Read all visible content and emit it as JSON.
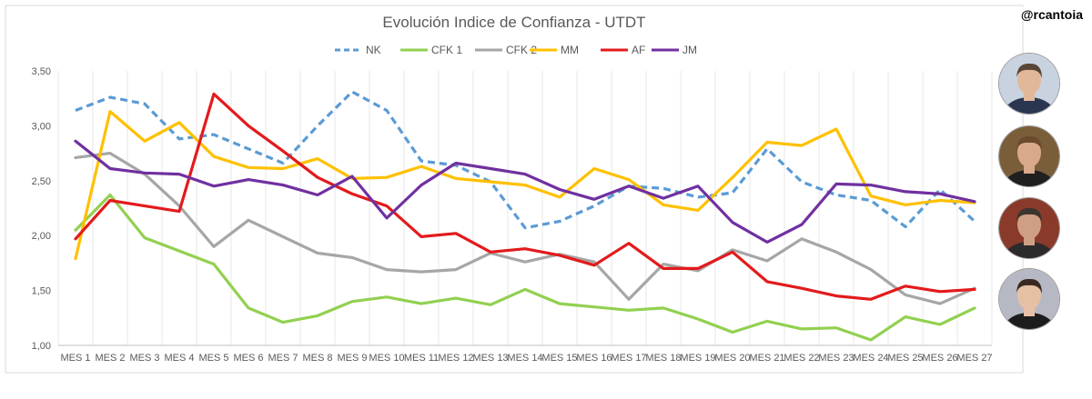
{
  "handle": "@rcantoia",
  "chart_data": {
    "type": "line",
    "title": "Evolución Indice de Confianza - UTDT",
    "xlabel": "",
    "ylabel": "",
    "ylim": [
      1.0,
      3.5
    ],
    "yticks": [
      "1,00",
      "1,50",
      "2,00",
      "2,50",
      "3,00",
      "3,50"
    ],
    "grid": "vertical",
    "legend": "top-center",
    "categories": [
      "MES 1",
      "MES 2",
      "MES 3",
      "MES 4",
      "MES 5",
      "MES 6",
      "MES 7",
      "MES 8",
      "MES 9",
      "MES 10",
      "MES 11",
      "MES 12",
      "MES 13",
      "MES 14",
      "MES 15",
      "MES 16",
      "MES 17",
      "MES 18",
      "MES 19",
      "MES 20",
      "MES 21",
      "MES 22",
      "MES 23",
      "MES 24",
      "MES 25",
      "MES 26",
      "MES 27"
    ],
    "series": [
      {
        "name": "NK",
        "color": "#5b9bd5",
        "dashed": true,
        "values": [
          3.14,
          3.26,
          3.2,
          2.88,
          2.92,
          2.79,
          2.66,
          3.0,
          3.31,
          3.14,
          2.68,
          2.64,
          2.49,
          2.07,
          2.13,
          2.27,
          2.45,
          2.43,
          2.35,
          2.39,
          2.79,
          2.49,
          2.37,
          2.32,
          2.08,
          2.42,
          2.13
        ]
      },
      {
        "name": "CFK 1",
        "color": "#92d050",
        "dashed": false,
        "values": [
          2.05,
          2.37,
          1.98,
          1.86,
          1.74,
          1.34,
          1.21,
          1.27,
          1.4,
          1.44,
          1.38,
          1.43,
          1.37,
          1.51,
          1.38,
          1.35,
          1.32,
          1.34,
          1.24,
          1.12,
          1.22,
          1.15,
          1.16,
          1.05,
          1.26,
          1.19,
          1.34
        ]
      },
      {
        "name": "CFK 2",
        "color": "#a6a6a6",
        "dashed": false,
        "values": [
          2.71,
          2.75,
          2.56,
          2.27,
          1.9,
          2.14,
          1.99,
          1.84,
          1.8,
          1.69,
          1.67,
          1.69,
          1.84,
          1.76,
          1.83,
          1.76,
          1.42,
          1.74,
          1.68,
          1.87,
          1.77,
          1.97,
          1.85,
          1.69,
          1.46,
          1.38,
          1.52
        ]
      },
      {
        "name": "MM",
        "color": "#ffc000",
        "dashed": false,
        "values": [
          1.79,
          3.13,
          2.86,
          3.03,
          2.72,
          2.62,
          2.61,
          2.7,
          2.52,
          2.53,
          2.63,
          2.52,
          2.49,
          2.46,
          2.35,
          2.61,
          2.51,
          2.28,
          2.23,
          2.53,
          2.85,
          2.82,
          2.97,
          2.36,
          2.28,
          2.32,
          2.3
        ]
      },
      {
        "name": "AF",
        "color": "#e31a1c",
        "dashed": false,
        "values": [
          1.97,
          2.32,
          2.27,
          2.22,
          3.29,
          3.0,
          2.77,
          2.53,
          2.38,
          2.27,
          1.99,
          2.02,
          1.85,
          1.88,
          1.82,
          1.73,
          1.93,
          1.7,
          1.7,
          1.85,
          1.58,
          1.52,
          1.45,
          1.42,
          1.54,
          1.49,
          1.51
        ]
      },
      {
        "name": "JM",
        "color": "#7030a0",
        "dashed": false,
        "values": [
          2.86,
          2.61,
          2.57,
          2.56,
          2.45,
          2.51,
          2.46,
          2.37,
          2.54,
          2.16,
          2.46,
          2.66,
          2.61,
          2.56,
          2.42,
          2.33,
          2.45,
          2.34,
          2.45,
          2.12,
          1.94,
          2.1,
          2.47,
          2.46,
          2.4,
          2.38,
          2.31
        ]
      }
    ]
  },
  "portraits": [
    {
      "name": "portrait-1",
      "skin": "#e2b89a",
      "hair": "#5a4636",
      "bg": "#c9d3e0",
      "suit": "#2a3550"
    },
    {
      "name": "portrait-2",
      "skin": "#d9a98c",
      "hair": "#6b4a2e",
      "bg": "#7a5e3a",
      "suit": "#1f1f1f"
    },
    {
      "name": "portrait-3",
      "skin": "#cf9f85",
      "hair": "#3c3430",
      "bg": "#8a3a2a",
      "suit": "#2b2b2b"
    },
    {
      "name": "portrait-4",
      "skin": "#e6c0a5",
      "hair": "#3a2820",
      "bg": "#b6b9c4",
      "suit": "#1d1d1d"
    }
  ]
}
